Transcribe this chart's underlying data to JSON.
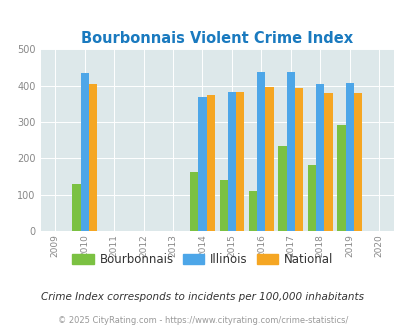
{
  "title": "Bourbonnais Violent Crime Index",
  "all_years": [
    2009,
    2010,
    2011,
    2012,
    2013,
    2014,
    2015,
    2016,
    2017,
    2018,
    2019,
    2020
  ],
  "data_years": [
    2010,
    2014,
    2015,
    2016,
    2017,
    2018,
    2019
  ],
  "bourbonnais": [
    130,
    163,
    140,
    110,
    235,
    183,
    292
  ],
  "illinois": [
    435,
    368,
    383,
    438,
    438,
    405,
    408
  ],
  "national": [
    406,
    374,
    383,
    397,
    394,
    379,
    379
  ],
  "color_bourbonnais": "#7bc142",
  "color_illinois": "#4da6e8",
  "color_national": "#f5a623",
  "bg_color": "#dde8ea",
  "fig_bg": "#ffffff",
  "ylim": [
    0,
    500
  ],
  "yticks": [
    0,
    100,
    200,
    300,
    400,
    500
  ],
  "tick_color": "#888888",
  "title_color": "#1a7abf",
  "legend_label_bourbonnais": "Bourbonnais",
  "legend_label_illinois": "Illinois",
  "legend_label_national": "National",
  "footnote1": "Crime Index corresponds to incidents per 100,000 inhabitants",
  "footnote2": "© 2025 CityRating.com - https://www.cityrating.com/crime-statistics/",
  "bar_width": 0.28
}
